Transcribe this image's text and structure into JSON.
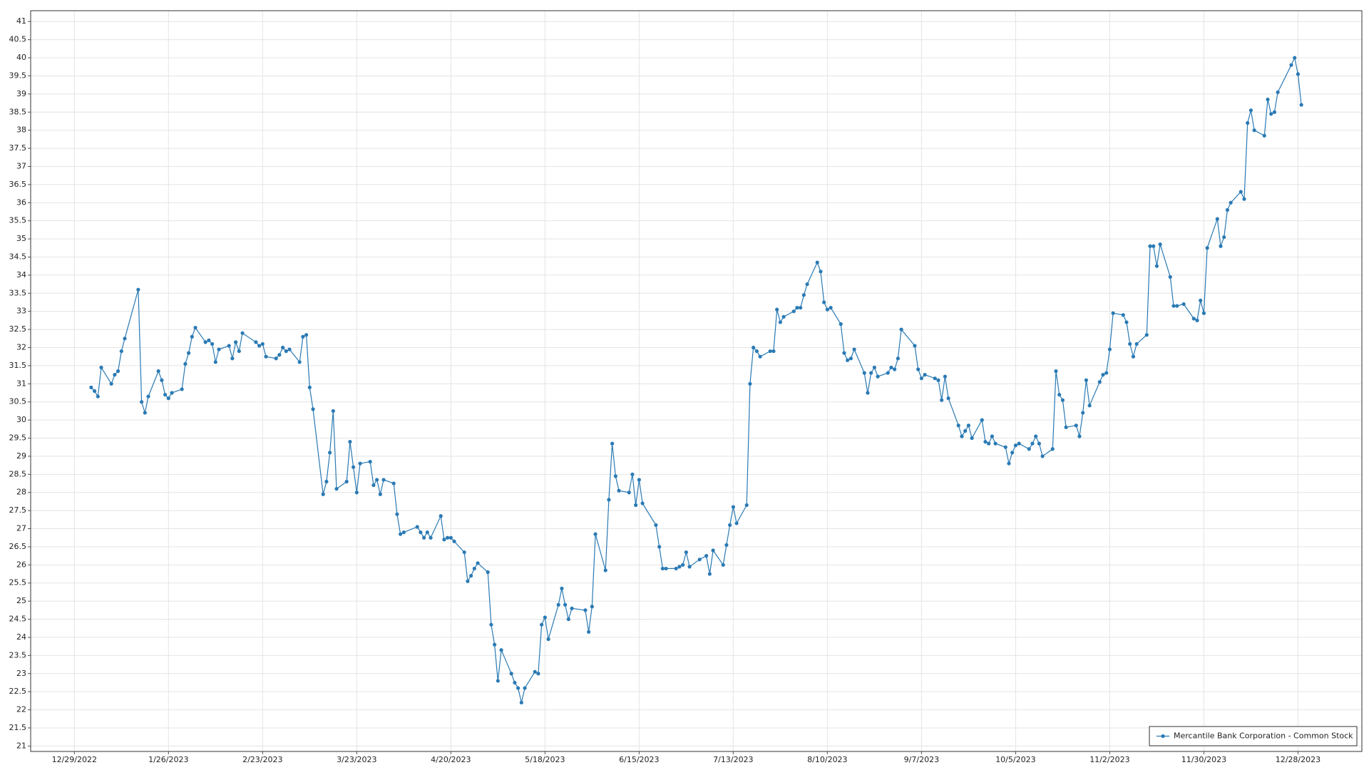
{
  "chart_data": {
    "type": "line",
    "series": [
      {
        "name": "Mercantile Bank Corporation - Common Stock",
        "color": "#2a7ab4",
        "x": [
          "1/3/2023",
          "1/4/2023",
          "1/5/2023",
          "1/6/2023",
          "1/9/2023",
          "1/10/2023",
          "1/11/2023",
          "1/12/2023",
          "1/13/2023",
          "1/17/2023",
          "1/18/2023",
          "1/19/2023",
          "1/20/2023",
          "1/23/2023",
          "1/24/2023",
          "1/25/2023",
          "1/26/2023",
          "1/27/2023",
          "1/30/2023",
          "1/31/2023",
          "2/1/2023",
          "2/2/2023",
          "2/3/2023",
          "2/6/2023",
          "2/7/2023",
          "2/8/2023",
          "2/9/2023",
          "2/10/2023",
          "2/13/2023",
          "2/14/2023",
          "2/15/2023",
          "2/16/2023",
          "2/17/2023",
          "2/21/2023",
          "2/22/2023",
          "2/23/2023",
          "2/24/2023",
          "2/27/2023",
          "2/28/2023",
          "3/1/2023",
          "3/2/2023",
          "3/3/2023",
          "3/6/2023",
          "3/7/2023",
          "3/8/2023",
          "3/9/2023",
          "3/10/2023",
          "3/13/2023",
          "3/14/2023",
          "3/15/2023",
          "3/16/2023",
          "3/17/2023",
          "3/20/2023",
          "3/21/2023",
          "3/22/2023",
          "3/23/2023",
          "3/24/2023",
          "3/27/2023",
          "3/28/2023",
          "3/29/2023",
          "3/30/2023",
          "3/31/2023",
          "4/3/2023",
          "4/4/2023",
          "4/5/2023",
          "4/6/2023",
          "4/10/2023",
          "4/11/2023",
          "4/12/2023",
          "4/13/2023",
          "4/14/2023",
          "4/17/2023",
          "4/18/2023",
          "4/19/2023",
          "4/20/2023",
          "4/21/2023",
          "4/24/2023",
          "4/25/2023",
          "4/26/2023",
          "4/27/2023",
          "4/28/2023",
          "5/1/2023",
          "5/2/2023",
          "5/3/2023",
          "5/4/2023",
          "5/5/2023",
          "5/8/2023",
          "5/9/2023",
          "5/10/2023",
          "5/11/2023",
          "5/12/2023",
          "5/15/2023",
          "5/16/2023",
          "5/17/2023",
          "5/18/2023",
          "5/19/2023",
          "5/22/2023",
          "5/23/2023",
          "5/24/2023",
          "5/25/2023",
          "5/26/2023",
          "5/30/2023",
          "5/31/2023",
          "6/1/2023",
          "6/2/2023",
          "6/5/2023",
          "6/6/2023",
          "6/7/2023",
          "6/8/2023",
          "6/9/2023",
          "6/12/2023",
          "6/13/2023",
          "6/14/2023",
          "6/15/2023",
          "6/16/2023",
          "6/20/2023",
          "6/21/2023",
          "6/22/2023",
          "6/23/2023",
          "6/26/2023",
          "6/27/2023",
          "6/28/2023",
          "6/29/2023",
          "6/30/2023",
          "7/3/2023",
          "7/5/2023",
          "7/6/2023",
          "7/7/2023",
          "7/10/2023",
          "7/11/2023",
          "7/12/2023",
          "7/13/2023",
          "7/14/2023",
          "7/17/2023",
          "7/18/2023",
          "7/19/2023",
          "7/20/2023",
          "7/21/2023",
          "7/24/2023",
          "7/25/2023",
          "7/26/2023",
          "7/27/2023",
          "7/28/2023",
          "7/31/2023",
          "8/1/2023",
          "8/2/2023",
          "8/3/2023",
          "8/4/2023",
          "8/7/2023",
          "8/8/2023",
          "8/9/2023",
          "8/10/2023",
          "8/11/2023",
          "8/14/2023",
          "8/15/2023",
          "8/16/2023",
          "8/17/2023",
          "8/18/2023",
          "8/21/2023",
          "8/22/2023",
          "8/23/2023",
          "8/24/2023",
          "8/25/2023",
          "8/28/2023",
          "8/29/2023",
          "8/30/2023",
          "8/31/2023",
          "9/1/2023",
          "9/5/2023",
          "9/6/2023",
          "9/7/2023",
          "9/8/2023",
          "9/11/2023",
          "9/12/2023",
          "9/13/2023",
          "9/14/2023",
          "9/15/2023",
          "9/18/2023",
          "9/19/2023",
          "9/20/2023",
          "9/21/2023",
          "9/22/2023",
          "9/25/2023",
          "9/26/2023",
          "9/27/2023",
          "9/28/2023",
          "9/29/2023",
          "10/2/2023",
          "10/3/2023",
          "10/4/2023",
          "10/5/2023",
          "10/6/2023",
          "10/9/2023",
          "10/10/2023",
          "10/11/2023",
          "10/12/2023",
          "10/13/2023",
          "10/16/2023",
          "10/17/2023",
          "10/18/2023",
          "10/19/2023",
          "10/20/2023",
          "10/23/2023",
          "10/24/2023",
          "10/25/2023",
          "10/26/2023",
          "10/27/2023",
          "10/30/2023",
          "10/31/2023",
          "11/1/2023",
          "11/2/2023",
          "11/3/2023",
          "11/6/2023",
          "11/7/2023",
          "11/8/2023",
          "11/9/2023",
          "11/10/2023",
          "11/13/2023",
          "11/14/2023",
          "11/15/2023",
          "11/16/2023",
          "11/17/2023",
          "11/20/2023",
          "11/21/2023",
          "11/22/2023",
          "11/24/2023",
          "11/27/2023",
          "11/28/2023",
          "11/29/2023",
          "11/30/2023",
          "12/1/2023",
          "12/4/2023",
          "12/5/2023",
          "12/6/2023",
          "12/7/2023",
          "12/8/2023",
          "12/11/2023",
          "12/12/2023",
          "12/13/2023",
          "12/14/2023",
          "12/15/2023",
          "12/18/2023",
          "12/19/2023",
          "12/20/2023",
          "12/21/2023",
          "12/22/2023",
          "12/26/2023",
          "12/27/2023",
          "12/28/2023",
          "12/29/2023"
        ],
        "values": [
          30.9,
          30.8,
          30.65,
          31.45,
          31.0,
          31.25,
          31.35,
          31.9,
          32.25,
          33.6,
          30.5,
          30.2,
          30.65,
          31.35,
          31.1,
          30.7,
          30.6,
          30.75,
          30.85,
          31.55,
          31.85,
          32.3,
          32.55,
          32.15,
          32.2,
          32.1,
          31.6,
          31.95,
          32.05,
          31.7,
          32.15,
          31.9,
          32.4,
          32.15,
          32.05,
          32.1,
          31.75,
          31.7,
          31.8,
          32.0,
          31.9,
          31.95,
          31.6,
          32.3,
          32.35,
          30.9,
          30.3,
          27.95,
          28.3,
          29.1,
          30.25,
          28.1,
          28.3,
          29.4,
          28.7,
          28.0,
          28.8,
          28.85,
          28.2,
          28.35,
          27.95,
          28.35,
          28.25,
          27.4,
          26.85,
          26.9,
          27.05,
          26.9,
          26.75,
          26.9,
          26.75,
          27.35,
          26.7,
          26.75,
          26.75,
          26.65,
          26.35,
          25.55,
          25.7,
          25.9,
          26.05,
          25.8,
          24.35,
          23.8,
          22.8,
          23.65,
          23.0,
          22.75,
          22.6,
          22.2,
          22.6,
          23.05,
          23.0,
          24.35,
          24.55,
          23.95,
          24.9,
          25.35,
          24.9,
          24.5,
          24.8,
          24.75,
          24.15,
          24.85,
          26.85,
          25.85,
          27.8,
          29.35,
          28.45,
          28.05,
          28.0,
          28.5,
          27.65,
          28.35,
          27.7,
          27.1,
          26.5,
          25.9,
          25.9,
          25.9,
          25.95,
          26.0,
          26.35,
          25.95,
          26.15,
          26.25,
          25.75,
          26.4,
          26.0,
          26.55,
          27.1,
          27.6,
          27.15,
          27.65,
          31.0,
          32.0,
          31.9,
          31.75,
          31.9,
          31.9,
          33.05,
          32.7,
          32.85,
          33.0,
          33.1,
          33.1,
          33.45,
          33.75,
          34.35,
          34.1,
          33.25,
          33.05,
          33.1,
          32.65,
          31.85,
          31.65,
          31.7,
          31.95,
          31.3,
          30.75,
          31.3,
          31.45,
          31.2,
          31.3,
          31.45,
          31.4,
          31.7,
          32.5,
          32.05,
          31.4,
          31.15,
          31.25,
          31.15,
          31.1,
          30.55,
          31.2,
          30.6,
          29.85,
          29.55,
          29.7,
          29.85,
          29.5,
          30.0,
          29.4,
          29.35,
          29.55,
          29.35,
          29.25,
          28.8,
          29.1,
          29.3,
          29.35,
          29.2,
          29.35,
          29.55,
          29.35,
          29.0,
          29.2,
          31.35,
          30.7,
          30.55,
          29.8,
          29.85,
          29.55,
          30.2,
          31.1,
          30.4,
          31.05,
          31.25,
          31.3,
          31.95,
          32.95,
          32.9,
          32.7,
          32.1,
          31.75,
          32.1,
          32.35,
          34.8,
          34.8,
          34.25,
          34.85,
          33.95,
          33.15,
          33.15,
          33.2,
          32.8,
          32.75,
          33.3,
          32.95,
          34.75,
          35.55,
          34.8,
          35.05,
          35.8,
          36.0,
          36.3,
          36.1,
          38.2,
          38.55,
          38.0,
          37.85,
          38.85,
          38.45,
          38.5,
          39.05,
          39.8,
          40.0,
          39.55,
          38.7
        ]
      }
    ],
    "xlim": [
      "12/16/2022",
      "1/16/2024"
    ],
    "xticks": [
      "12/29/2022",
      "1/26/2023",
      "2/23/2023",
      "3/23/2023",
      "4/20/2023",
      "5/18/2023",
      "6/15/2023",
      "7/13/2023",
      "8/10/2023",
      "9/7/2023",
      "10/5/2023",
      "11/2/2023",
      "11/30/2023",
      "12/28/2023"
    ],
    "ylim": [
      20.85,
      41.3
    ],
    "yticks": [
      21,
      21.5,
      22,
      22.5,
      23,
      23.5,
      24,
      24.5,
      25,
      25.5,
      26,
      26.5,
      27,
      27.5,
      28,
      28.5,
      29,
      29.5,
      30,
      30.5,
      31,
      31.5,
      32,
      32.5,
      33,
      33.5,
      34,
      34.5,
      35,
      35.5,
      36,
      36.5,
      37,
      37.5,
      38,
      38.5,
      39,
      39.5,
      40,
      40.5,
      41
    ],
    "grid": true,
    "legend": "lower right"
  }
}
